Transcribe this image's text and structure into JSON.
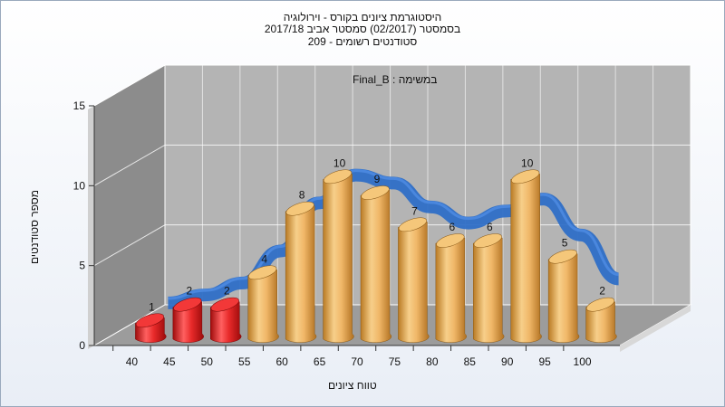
{
  "chart_data": {
    "type": "bar",
    "title_lines": [
      "היסטוגרמת ציונים בקורס - וירולוגיה",
      "בסמסטר  (02/2017)  סמסטר אביב 2017/18",
      "209 - סטודנטים רשומים"
    ],
    "subtitle": "במשימה : Final_B",
    "xlabel": "טווח ציונים",
    "ylabel": "מספר סטודנטים",
    "ylim": [
      0,
      15
    ],
    "yticks": [
      "0",
      "5",
      "10",
      "15"
    ],
    "categories": [
      "40",
      "45",
      "50",
      "55",
      "60",
      "65",
      "70",
      "75",
      "80",
      "85",
      "90",
      "95",
      "100"
    ],
    "values": [
      1,
      2,
      2,
      4,
      8,
      10,
      9,
      7,
      6,
      6,
      10,
      5,
      2
    ],
    "failing_categories": [
      "40",
      "45",
      "50"
    ],
    "curve": "smooth distribution curve (blue ribbon)",
    "grid": true,
    "colors": {
      "fail_bar": "#e02020",
      "pass_bar": "#e8a84a",
      "curve": "#2f6fc7",
      "wall": "#b4b4b4",
      "side_wall": "#8c8c8c",
      "floor": "#9c9c9c"
    }
  }
}
